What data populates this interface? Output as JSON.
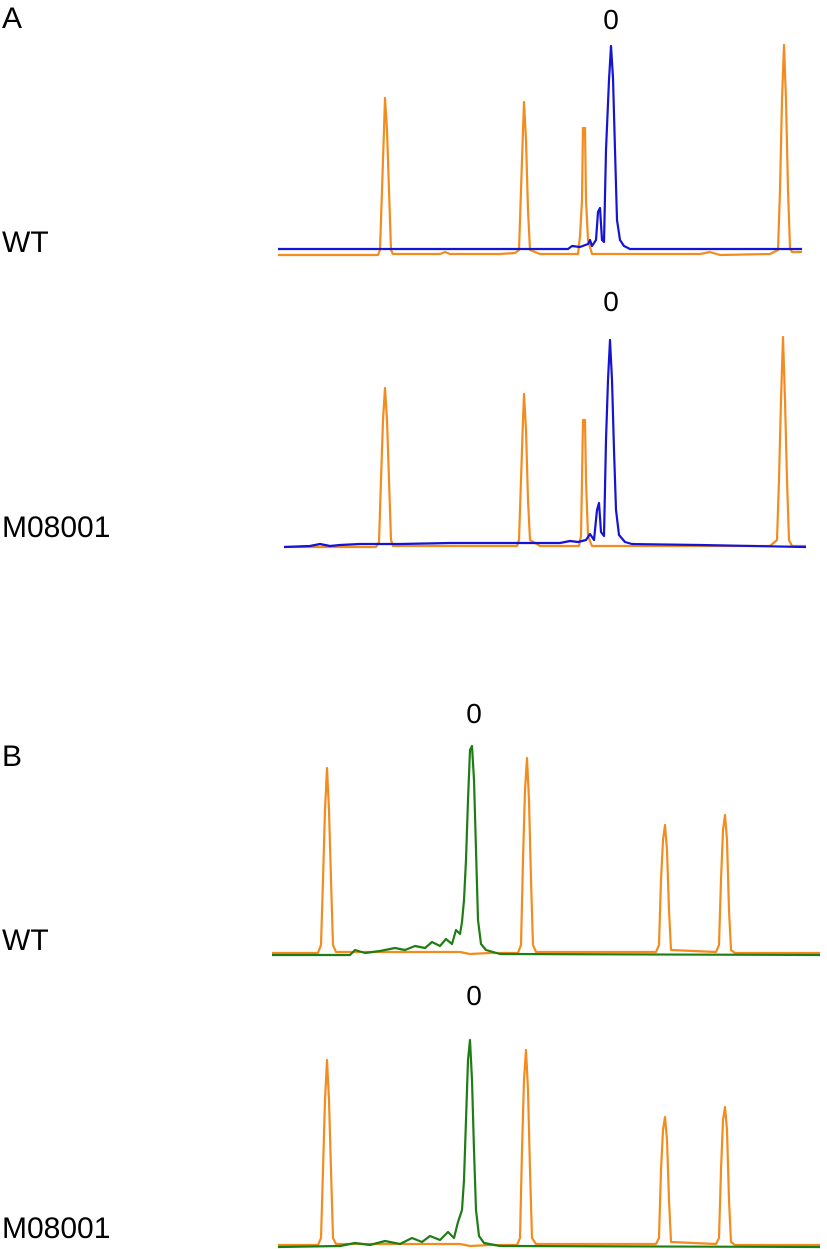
{
  "panels": [
    {
      "letter": "A"
    },
    {
      "letter": "B"
    }
  ],
  "colors": {
    "standard": "#F28C1E",
    "panelA_sample": "#1414D2",
    "panelB_sample": "#1E7D14"
  },
  "chart_data": [
    {
      "type": "line",
      "panel": "A",
      "sample": "WT",
      "peak_label": "0",
      "series": [
        {
          "color": "#F28C1E"
        },
        {
          "color": "#1414D2"
        }
      ]
    },
    {
      "type": "line",
      "panel": "A",
      "sample": "M08001",
      "peak_label": "0",
      "series": [
        {
          "color": "#F28C1E"
        },
        {
          "color": "#1414D2"
        }
      ]
    },
    {
      "type": "line",
      "panel": "B",
      "sample": "WT",
      "peak_label": "0",
      "series": [
        {
          "color": "#F28C1E"
        },
        {
          "color": "#1E7D14"
        }
      ]
    },
    {
      "type": "line",
      "panel": "B",
      "sample": "M08001",
      "peak_label": "0",
      "series": [
        {
          "color": "#F28C1E"
        },
        {
          "color": "#1E7D14"
        }
      ]
    }
  ]
}
